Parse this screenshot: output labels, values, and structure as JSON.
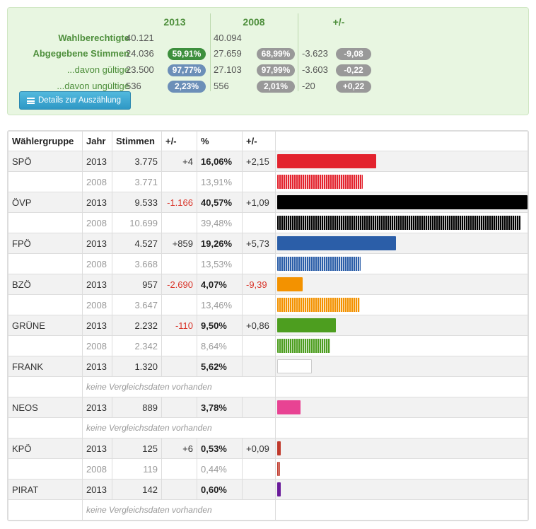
{
  "summary": {
    "headers": {
      "y2013": "2013",
      "y2008": "2008",
      "diff": "+/-"
    },
    "rows": [
      {
        "label": "Wahlberechtigte",
        "v2013": "40.121",
        "p2013": "",
        "v2008": "40.094",
        "p2008": "",
        "dv": "",
        "dp": ""
      },
      {
        "label": "Abgegebene Stimmen",
        "v2013": "24.036",
        "p2013": "59,91%",
        "v2008": "27.659",
        "p2008": "68,99%",
        "dv": "-3.623",
        "dp": "-9,08"
      },
      {
        "label": "...davon gültige",
        "v2013": "23.500",
        "p2013": "97,77%",
        "v2008": "27.103",
        "p2008": "97,99%",
        "dv": "-3.603",
        "dp": "-0,22"
      },
      {
        "label": "...davon ungültige",
        "v2013": "536",
        "p2013": "2,23%",
        "v2008": "556",
        "p2008": "2,01%",
        "dv": "-20",
        "dp": "+0,22"
      }
    ],
    "details_button": "Details zur Auszählung"
  },
  "table": {
    "headers": {
      "group": "Wählergruppe",
      "year": "Jahr",
      "votes": "Stimmen",
      "diff": "+/-",
      "pct": "%",
      "pctdiff": "+/-"
    },
    "no_data": "keine Vergleichsdaten vorhanden",
    "parties": [
      {
        "name": "SPÖ",
        "color": "#e3232e",
        "r2013": {
          "year": "2013",
          "votes": "3.775",
          "diff": "+4",
          "pct": "16,06%",
          "pctdiff": "+2,15",
          "share": 16.06
        },
        "r2008": {
          "year": "2008",
          "votes": "3.771",
          "pct": "13,91%",
          "share": 13.91
        }
      },
      {
        "name": "ÖVP",
        "color": "#000000",
        "r2013": {
          "year": "2013",
          "votes": "9.533",
          "diff": "-1.166",
          "pct": "40,57%",
          "pctdiff": "+1,09",
          "share": 40.57
        },
        "r2008": {
          "year": "2008",
          "votes": "10.699",
          "pct": "39,48%",
          "share": 39.48
        }
      },
      {
        "name": "FPÖ",
        "color": "#2b5ea8",
        "r2013": {
          "year": "2013",
          "votes": "4.527",
          "diff": "+859",
          "pct": "19,26%",
          "pctdiff": "+5,73",
          "share": 19.26
        },
        "r2008": {
          "year": "2008",
          "votes": "3.668",
          "pct": "13,53%",
          "share": 13.53
        }
      },
      {
        "name": "BZÖ",
        "color": "#f39200",
        "r2013": {
          "year": "2013",
          "votes": "957",
          "diff": "-2.690",
          "pct": "4,07%",
          "pctdiff": "-9,39",
          "share": 4.07
        },
        "r2008": {
          "year": "2008",
          "votes": "3.647",
          "pct": "13,46%",
          "share": 13.46
        }
      },
      {
        "name": "GRÜNE",
        "color": "#4d9e1f",
        "r2013": {
          "year": "2013",
          "votes": "2.232",
          "diff": "-110",
          "pct": "9,50%",
          "pctdiff": "+0,86",
          "share": 9.5
        },
        "r2008": {
          "year": "2008",
          "votes": "2.342",
          "pct": "8,64%",
          "share": 8.64
        }
      },
      {
        "name": "FRANK",
        "color": "#ffffff",
        "r2013": {
          "year": "2013",
          "votes": "1.320",
          "diff": "",
          "pct": "5,62%",
          "pctdiff": "",
          "share": 5.62
        },
        "r2008": null
      },
      {
        "name": "NEOS",
        "color": "#e84393",
        "r2013": {
          "year": "2013",
          "votes": "889",
          "diff": "",
          "pct": "3,78%",
          "pctdiff": "",
          "share": 3.78
        },
        "r2008": null
      },
      {
        "name": "KPÖ",
        "color": "#c0392b",
        "r2013": {
          "year": "2013",
          "votes": "125",
          "diff": "+6",
          "pct": "0,53%",
          "pctdiff": "+0,09",
          "share": 0.53
        },
        "r2008": {
          "year": "2008",
          "votes": "119",
          "pct": "0,44%",
          "share": 0.44
        }
      },
      {
        "name": "PIRAT",
        "color": "#6a1b9a",
        "r2013": {
          "year": "2013",
          "votes": "142",
          "diff": "",
          "pct": "0,60%",
          "pctdiff": "",
          "share": 0.6
        },
        "r2008": null
      }
    ]
  }
}
